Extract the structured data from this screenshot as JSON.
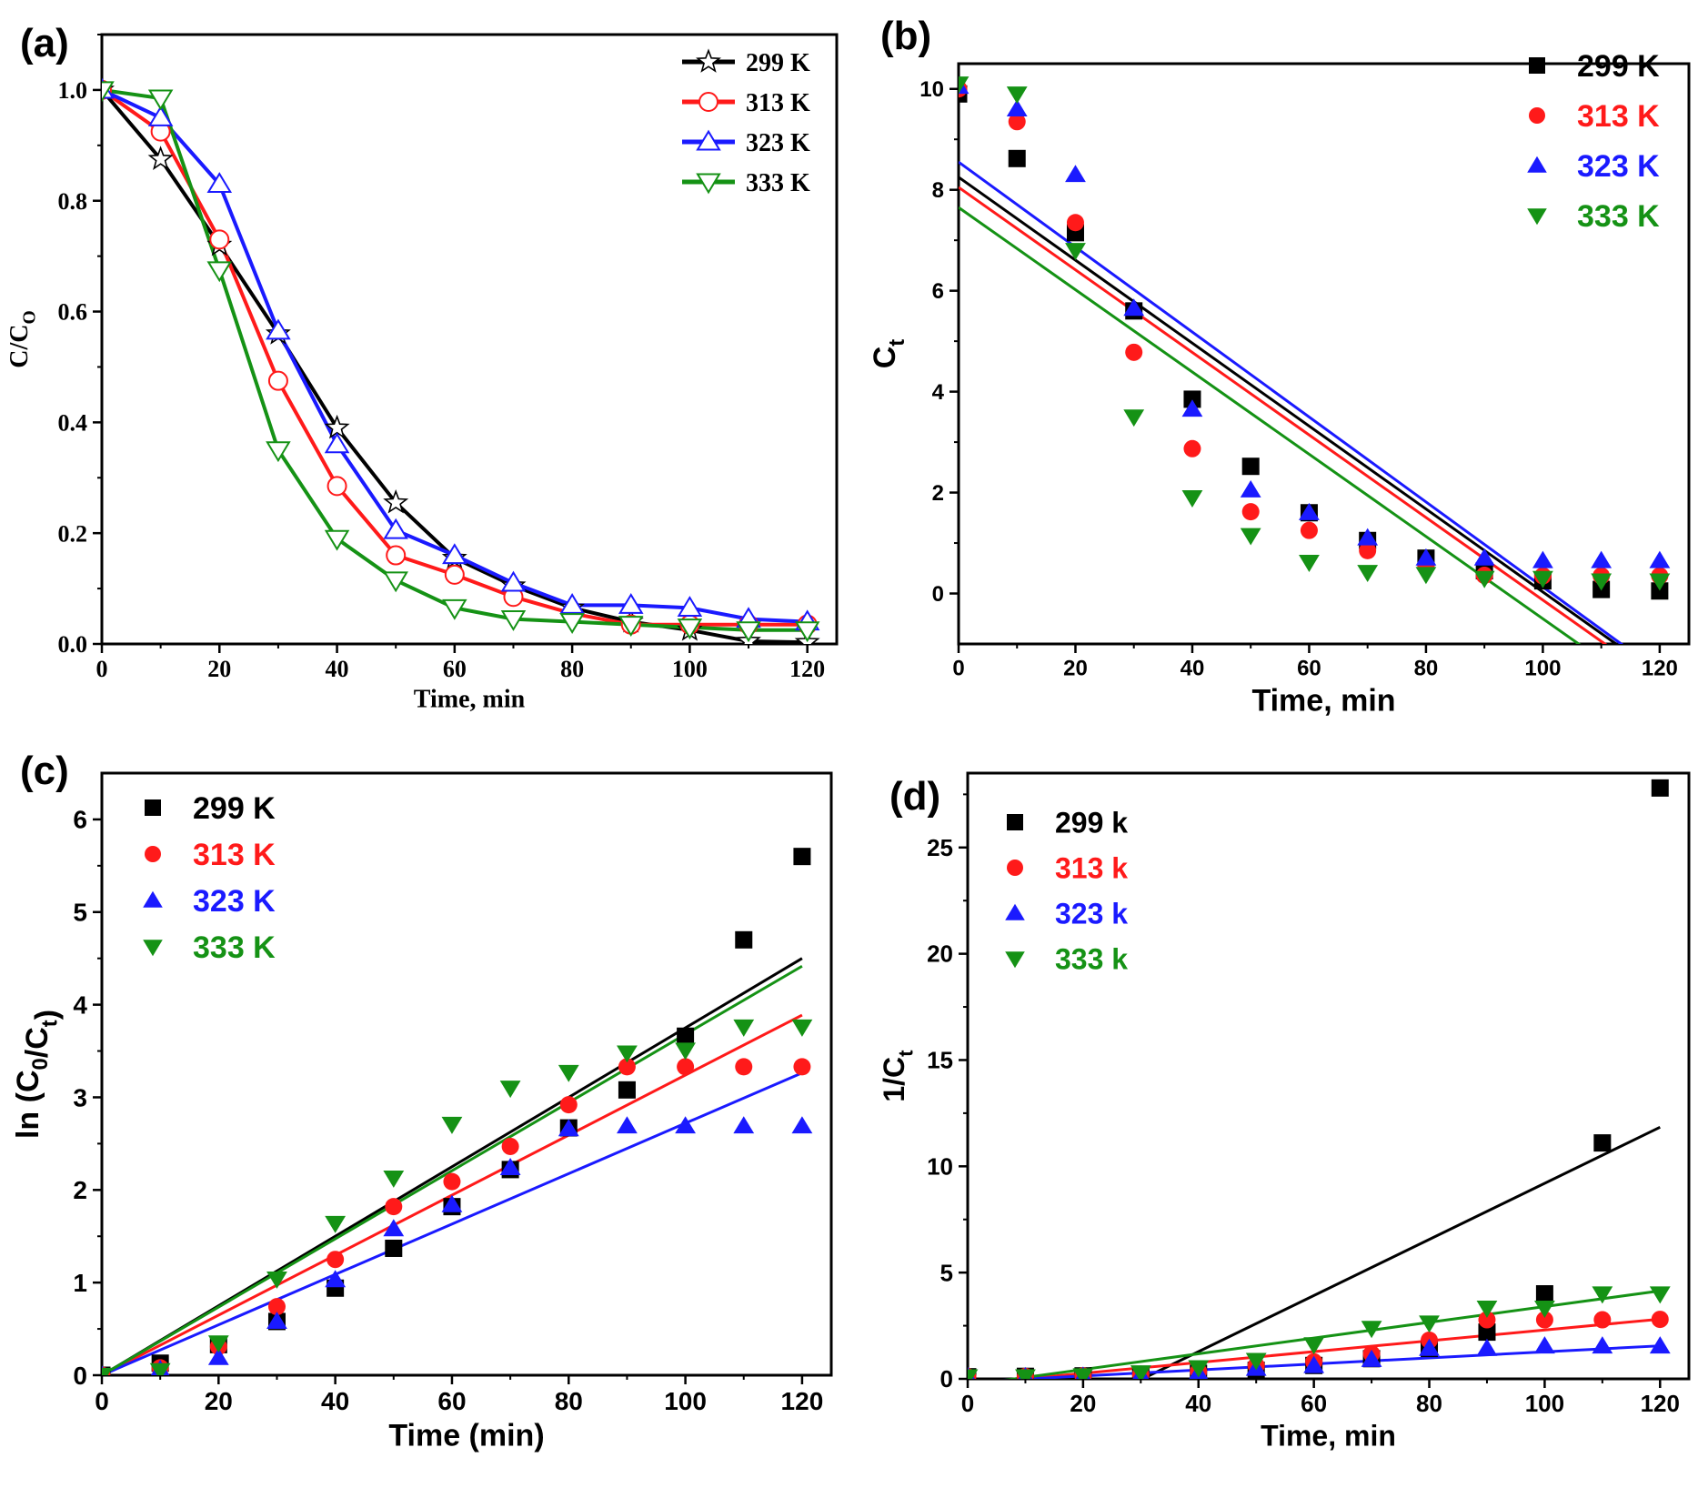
{
  "colors": {
    "t299": "#000000",
    "t313": "#ff1a1a",
    "t323": "#1a1aff",
    "t333": "#159215"
  },
  "chart_data": [
    {
      "panel": "(a)",
      "type": "line",
      "xlabel": "Time, min",
      "ylabel": {
        "main": "C/C",
        "sub": "O"
      },
      "xlim": [
        0,
        125
      ],
      "ylim": [
        0,
        1.1
      ],
      "xticks": [
        "0",
        "20",
        "40",
        "60",
        "80",
        "100",
        "120"
      ],
      "yticks": [
        "0.0",
        "0.2",
        "0.4",
        "0.6",
        "0.8",
        "1.0"
      ],
      "legend_position": "top-right",
      "x": [
        0,
        10,
        20,
        30,
        40,
        50,
        60,
        70,
        80,
        90,
        100,
        110,
        120
      ],
      "series": [
        {
          "name": "299 K",
          "color_key": "t299",
          "marker": "star",
          "values": [
            1.0,
            0.875,
            0.72,
            0.56,
            0.39,
            0.255,
            0.155,
            0.105,
            0.065,
            0.04,
            0.025,
            0.005,
            0.003
          ]
        },
        {
          "name": "313 K",
          "color_key": "t313",
          "marker": "circle",
          "values": [
            1.0,
            0.925,
            0.73,
            0.475,
            0.285,
            0.16,
            0.125,
            0.085,
            0.055,
            0.035,
            0.035,
            0.035,
            0.035
          ]
        },
        {
          "name": "323 K",
          "color_key": "t323",
          "marker": "triangle-up",
          "values": [
            1.0,
            0.95,
            0.83,
            0.565,
            0.36,
            0.205,
            0.16,
            0.11,
            0.07,
            0.07,
            0.065,
            0.045,
            0.04
          ]
        },
        {
          "name": "333 K",
          "color_key": "t333",
          "marker": "triangle-down",
          "values": [
            1.0,
            0.985,
            0.675,
            0.35,
            0.19,
            0.115,
            0.065,
            0.045,
            0.04,
            0.035,
            0.03,
            0.025,
            0.025
          ]
        }
      ]
    },
    {
      "panel": "(b)",
      "type": "scatter",
      "xlabel": "Time, min",
      "ylabel": {
        "main": "C",
        "sub": "t"
      },
      "xlim": [
        0,
        125
      ],
      "ylim": [
        -1,
        10.5
      ],
      "xticks": [
        "0",
        "20",
        "40",
        "60",
        "80",
        "100",
        "120"
      ],
      "yticks": [
        "0",
        "2",
        "4",
        "6",
        "8",
        "10"
      ],
      "legend_position": "top-right",
      "x": [
        0,
        10,
        20,
        30,
        40,
        50,
        60,
        70,
        80,
        90,
        100,
        110,
        120
      ],
      "series": [
        {
          "name": "299 K",
          "color_key": "t299",
          "marker": "square",
          "values": [
            9.9,
            8.62,
            7.15,
            5.6,
            3.85,
            2.52,
            1.6,
            1.05,
            0.7,
            0.45,
            0.25,
            0.08,
            0.05
          ],
          "fit": [
            8.25,
            -0.0822
          ]
        },
        {
          "name": "313 K",
          "color_key": "t313",
          "marker": "circle",
          "values": [
            10.0,
            9.35,
            7.35,
            4.78,
            2.87,
            1.62,
            1.25,
            0.85,
            0.55,
            0.36,
            0.35,
            0.35,
            0.35
          ],
          "fit": [
            8.05,
            -0.0818
          ]
        },
        {
          "name": "323 K",
          "color_key": "t323",
          "marker": "triangle-up",
          "values": [
            10.05,
            9.6,
            8.3,
            5.65,
            3.65,
            2.05,
            1.6,
            1.1,
            0.7,
            0.7,
            0.65,
            0.65,
            0.65
          ],
          "fit": [
            8.55,
            -0.0842
          ]
        },
        {
          "name": "333 K",
          "color_key": "t333",
          "marker": "triangle-down",
          "values": [
            10.1,
            9.9,
            6.8,
            3.5,
            1.9,
            1.15,
            0.62,
            0.42,
            0.38,
            0.3,
            0.3,
            0.25,
            0.25
          ],
          "fit": [
            7.65,
            -0.0815
          ]
        }
      ]
    },
    {
      "panel": "(c)",
      "type": "scatter",
      "xlabel": "Time (min)",
      "ylabel": {
        "main": "ln (C",
        "sub": "0",
        "mid": "/C",
        "sub2": "t",
        "end": ")"
      },
      "xlim": [
        0,
        125
      ],
      "ylim": [
        0,
        6.5
      ],
      "xticks": [
        "0",
        "20",
        "40",
        "60",
        "80",
        "100",
        "120"
      ],
      "yticks": [
        "0",
        "1",
        "2",
        "3",
        "4",
        "5",
        "6"
      ],
      "legend_position": "top-left",
      "x": [
        0,
        10,
        20,
        30,
        40,
        50,
        60,
        70,
        80,
        90,
        100,
        110,
        120
      ],
      "series": [
        {
          "name": "299 K",
          "color_key": "t299",
          "marker": "square",
          "values": [
            0.0,
            0.13,
            0.33,
            0.58,
            0.94,
            1.37,
            1.82,
            2.22,
            2.67,
            3.08,
            3.66,
            4.7,
            5.6
          ],
          "fit": [
            0,
            0.0375
          ]
        },
        {
          "name": "313 K",
          "color_key": "t313",
          "marker": "circle",
          "values": [
            0.0,
            0.08,
            0.31,
            0.74,
            1.25,
            1.82,
            2.09,
            2.47,
            2.92,
            3.33,
            3.33,
            3.33,
            3.33
          ],
          "fit": [
            0,
            0.0324
          ]
        },
        {
          "name": "323 K",
          "color_key": "t323",
          "marker": "triangle-up",
          "values": [
            0.0,
            0.06,
            0.19,
            0.58,
            1.03,
            1.58,
            1.84,
            2.24,
            2.66,
            2.69,
            2.69,
            2.69,
            2.69
          ],
          "fit": [
            0,
            0.0272
          ]
        },
        {
          "name": "333 K",
          "color_key": "t333",
          "marker": "triangle-down",
          "values": [
            0.0,
            0.05,
            0.35,
            1.04,
            1.64,
            2.13,
            2.71,
            3.1,
            3.27,
            3.48,
            3.51,
            3.76,
            3.76
          ],
          "fit": [
            0,
            0.0368
          ]
        }
      ]
    },
    {
      "panel": "(d)",
      "type": "scatter",
      "xlabel": "Time, min",
      "ylabel": {
        "main": "1/C",
        "sub": "t"
      },
      "xlim": [
        0,
        125
      ],
      "ylim": [
        0,
        28.5
      ],
      "xticks": [
        "0",
        "20",
        "40",
        "60",
        "80",
        "100",
        "120"
      ],
      "yticks": [
        "0",
        "5",
        "10",
        "15",
        "20",
        "25"
      ],
      "legend_position": "top-left",
      "x": [
        0,
        10,
        20,
        30,
        40,
        50,
        60,
        70,
        80,
        90,
        100,
        110,
        120
      ],
      "series": [
        {
          "name": "299 k",
          "color_key": "t299",
          "marker": "square",
          "values": [
            0.1,
            0.12,
            0.14,
            0.18,
            0.26,
            0.4,
            0.63,
            0.95,
            1.43,
            2.2,
            4.0,
            11.1,
            27.8
          ],
          "fit": [
            -4.0,
            0.132
          ]
        },
        {
          "name": "313 k",
          "color_key": "t313",
          "marker": "circle",
          "values": [
            0.1,
            0.11,
            0.14,
            0.21,
            0.35,
            0.62,
            0.8,
            1.18,
            1.82,
            2.78,
            2.78,
            2.78,
            2.8
          ],
          "fit": [
            -0.25,
            0.0255
          ]
        },
        {
          "name": "323 k",
          "color_key": "t323",
          "marker": "triangle-up",
          "values": [
            0.1,
            0.1,
            0.12,
            0.18,
            0.27,
            0.49,
            0.62,
            0.91,
            1.43,
            1.43,
            1.54,
            1.54,
            1.54
          ],
          "fit": [
            -0.15,
            0.0142
          ]
        },
        {
          "name": "333 k",
          "color_key": "t333",
          "marker": "triangle-down",
          "values": [
            0.1,
            0.1,
            0.15,
            0.29,
            0.53,
            0.87,
            1.61,
            2.38,
            2.63,
            3.33,
            3.33,
            4.0,
            4.0
          ],
          "fit": [
            -0.3,
            0.037
          ]
        }
      ]
    }
  ]
}
